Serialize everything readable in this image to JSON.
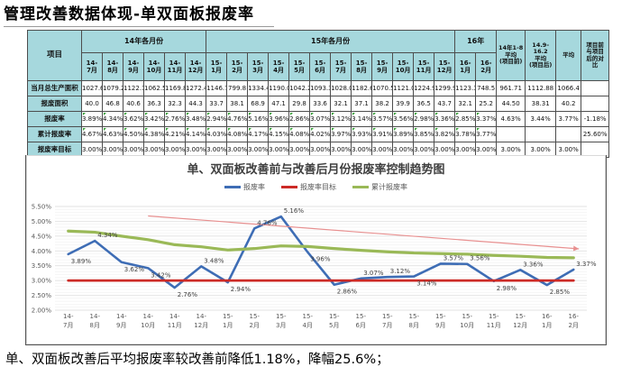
{
  "page": {
    "title": "管理改善数据体现-单双面板报废率",
    "footer": "单、双面板改善后平均报废率较改善前降低1.18%，降幅25.6%；"
  },
  "table": {
    "corner_header": "项目",
    "group_headers": [
      {
        "label": "14年各月份",
        "span": 6
      },
      {
        "label": "15年各月份",
        "span": 12
      },
      {
        "label": "16年",
        "span": 2
      }
    ],
    "avg_headers": [
      "14年1-8\n平均\n(项目前)",
      "14.9-16.2\n平均\n(项目后)",
      "平均",
      "项目前\n与项目\n后的对\n比"
    ],
    "month_headers": [
      "14-\n7月",
      "14-\n8月",
      "14-\n9月",
      "14-\n10月",
      "14-\n11月",
      "14-\n12月",
      "15-\n1月",
      "15-\n2月",
      "15-\n3月",
      "15-\n4月",
      "15-\n5月",
      "15-\n6月",
      "15-\n7月",
      "15-\n8月",
      "15-\n9月",
      "15-\n10月",
      "15-\n11月",
      "15-\n12月",
      "16-\n1月",
      "16-\n2月"
    ],
    "rows": [
      {
        "label": "当月总生产面积",
        "flags": false,
        "cells": [
          "1027.6",
          "1079.2",
          "1122.1",
          "1062.5",
          "1169.8",
          "1272.4",
          "1146.7",
          "799.8",
          "1334.4",
          "1190.0",
          "1042.2",
          "1093.3",
          "1028.0",
          "1182.6",
          "1070.5",
          "1121.0",
          "1224.9",
          "1299.9",
          "1123.3",
          "748.5",
          "961.71",
          "1112.88",
          "1066.4",
          ""
        ]
      },
      {
        "label": "报废面积",
        "flags": false,
        "cells": [
          "40.0",
          "46.8",
          "40.6",
          "36.3",
          "32.3",
          "44.3",
          "33.7",
          "38.1",
          "68.9",
          "47.1",
          "29.8",
          "33.6",
          "32.1",
          "37.1",
          "38.2",
          "39.9",
          "36.5",
          "43.7",
          "32.1",
          "25.2",
          "44.50",
          "38.31",
          "40.2",
          ""
        ]
      },
      {
        "label": "报废率",
        "flags": true,
        "cells": [
          "3.89%",
          "4.34%",
          "3.62%",
          "3.42%",
          "2.76%",
          "3.48%",
          "2.94%",
          "4.76%",
          "5.16%",
          "3.96%",
          "2.86%",
          "3.07%",
          "3.12%",
          "3.14%",
          "3.57%",
          "3.56%",
          "2.98%",
          "3.36%",
          "2.85%",
          "3.37%",
          "4.63%",
          "3.44%",
          "3.77%",
          "-1.18%"
        ]
      },
      {
        "label": "累计报废率",
        "flags": true,
        "cells": [
          "4.67%",
          "4.63%",
          "4.50%",
          "4.38%",
          "4.21%",
          "4.14%",
          "4.03%",
          "4.08%",
          "4.17%",
          "4.15%",
          "4.08%",
          "4.02%",
          "3.97%",
          "3.93%",
          "3.91%",
          "3.89%",
          "3.85%",
          "3.82%",
          "3.78%",
          "3.77%",
          "",
          "",
          "",
          "25.60%"
        ]
      },
      {
        "label": "报废率目标",
        "flags": false,
        "cells": [
          "3.00%",
          "3.00%",
          "3.00%",
          "3.00%",
          "3.00%",
          "3.00%",
          "3.00%",
          "3.00%",
          "3.00%",
          "3.00%",
          "3.00%",
          "3.00%",
          "3.00%",
          "3.00%",
          "3.00%",
          "3.00%",
          "3.00%",
          "3.00%",
          "3.00%",
          "3.00%",
          "3.00%",
          "3.00%",
          "3.00%",
          ""
        ]
      }
    ],
    "header_bg": "#A6D8DD"
  },
  "chart_data": {
    "type": "line",
    "title": "单、双面板改善前与改善后月份报废率控制趋势图",
    "categories": [
      "14-7月",
      "14-8月",
      "14-9月",
      "14-10月",
      "14-11月",
      "14-12月",
      "15-1月",
      "15-2月",
      "15-3月",
      "15-4月",
      "15-5月",
      "15-6月",
      "15-7月",
      "15-8月",
      "15-9月",
      "15-10月",
      "15-11月",
      "15-12月",
      "16-1月",
      "16-2月"
    ],
    "ylim": [
      2.0,
      5.5
    ],
    "ytick_step": 0.5,
    "grid": true,
    "legend_position": "top",
    "ylabel": "",
    "xlabel": "",
    "series": [
      {
        "name": "报废率",
        "color": "#3E6DB5",
        "values": [
          3.89,
          4.34,
          3.62,
          3.42,
          2.76,
          3.48,
          2.94,
          4.76,
          5.16,
          3.96,
          2.86,
          3.07,
          3.12,
          3.14,
          3.57,
          3.56,
          2.98,
          3.36,
          2.85,
          3.37
        ],
        "show_labels": true,
        "label_positions": [
          "below",
          "above",
          "below",
          "below",
          "below",
          "above",
          "below",
          "above",
          "above",
          "below",
          "below",
          "above",
          "above",
          "below",
          "above",
          "above",
          "below",
          "above",
          "below",
          "above"
        ]
      },
      {
        "name": "报废率目标",
        "color": "#CC2A26",
        "values": [
          3.0,
          3.0,
          3.0,
          3.0,
          3.0,
          3.0,
          3.0,
          3.0,
          3.0,
          3.0,
          3.0,
          3.0,
          3.0,
          3.0,
          3.0,
          3.0,
          3.0,
          3.0,
          3.0,
          3.0
        ]
      },
      {
        "name": "累计报废率",
        "color": "#9AB957",
        "values": [
          4.67,
          4.63,
          4.5,
          4.38,
          4.21,
          4.14,
          4.03,
          4.08,
          4.17,
          4.15,
          4.08,
          4.02,
          3.97,
          3.93,
          3.91,
          3.89,
          3.85,
          3.82,
          3.78,
          3.77
        ]
      }
    ],
    "trend_arrow": {
      "from_index": 3.0,
      "from_value": 5.18,
      "to_index": 19.2,
      "to_value": 4.07,
      "color": "#E89090"
    }
  }
}
